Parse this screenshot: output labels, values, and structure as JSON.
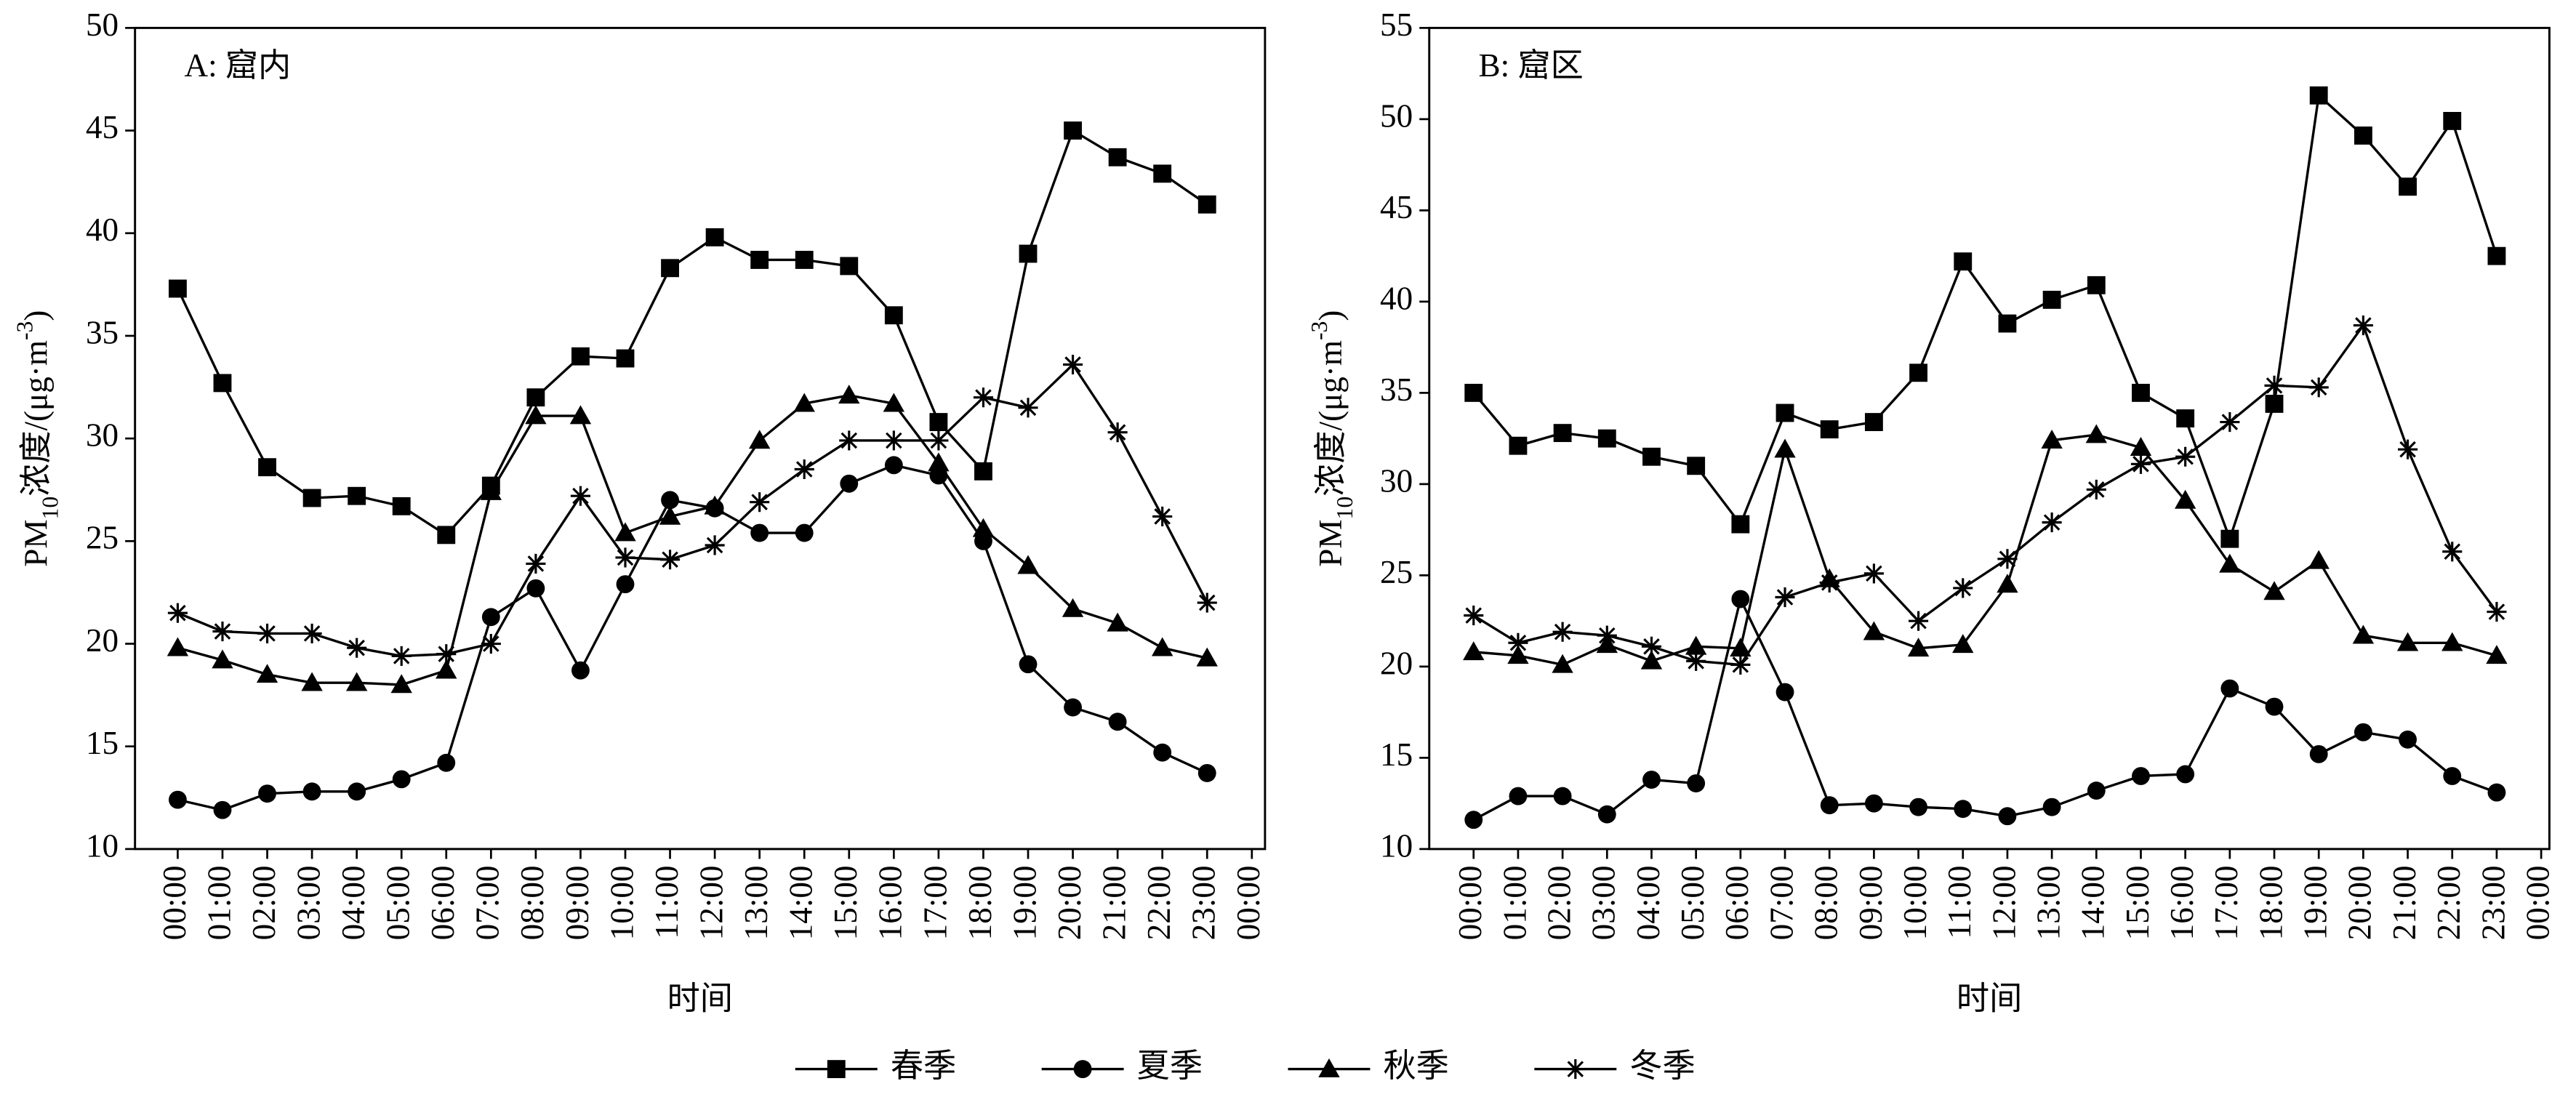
{
  "chart_data": [
    {
      "type": "line",
      "title": "A: 窟内",
      "ylabel_parts": [
        "PM",
        "10",
        "浓度/(μg·m",
        "-3",
        ")"
      ],
      "xlabel": "时间",
      "categories": [
        "00:00",
        "01:00",
        "02:00",
        "03:00",
        "04:00",
        "05:00",
        "06:00",
        "07:00",
        "08:00",
        "09:00",
        "10:00",
        "11:00",
        "12:00",
        "13:00",
        "14:00",
        "15:00",
        "16:00",
        "17:00",
        "18:00",
        "19:00",
        "20:00",
        "21:00",
        "22:00",
        "23:00",
        "00:00"
      ],
      "ylim": [
        10,
        50
      ],
      "yticks": [
        10,
        15,
        20,
        25,
        30,
        35,
        40,
        45,
        50
      ],
      "series": [
        {
          "name": "春季",
          "color": "#000000",
          "marker": "square",
          "values": [
            37.3,
            32.7,
            28.6,
            27.1,
            27.2,
            26.7,
            25.3,
            27.7,
            32.0,
            34.0,
            33.9,
            38.3,
            39.8,
            38.7,
            38.7,
            38.4,
            36.0,
            30.8,
            28.4,
            39.0,
            45.0,
            43.7,
            42.9,
            41.4,
            null
          ]
        },
        {
          "name": "夏季",
          "color": "#000000",
          "marker": "circle",
          "values": [
            12.4,
            11.9,
            12.7,
            12.8,
            12.8,
            13.4,
            14.2,
            21.3,
            22.7,
            18.7,
            22.9,
            27.0,
            26.6,
            25.4,
            25.4,
            27.8,
            28.7,
            28.2,
            25.0,
            19.0,
            16.9,
            16.2,
            14.7,
            13.7,
            null
          ]
        },
        {
          "name": "秋季",
          "color": "#000000",
          "marker": "triangle",
          "values": [
            19.8,
            19.2,
            18.5,
            18.1,
            18.1,
            18.0,
            18.7,
            27.4,
            31.1,
            31.1,
            25.4,
            26.2,
            26.7,
            29.9,
            31.7,
            32.1,
            31.7,
            28.8,
            25.6,
            23.8,
            21.7,
            21.0,
            19.8,
            19.3,
            null
          ]
        },
        {
          "name": "冬季",
          "color": "#000000",
          "marker": "asterisk",
          "values": [
            21.5,
            20.6,
            20.5,
            20.5,
            19.8,
            19.4,
            19.5,
            20.0,
            23.9,
            27.2,
            24.2,
            24.1,
            24.8,
            26.9,
            28.5,
            29.9,
            29.9,
            29.9,
            32.0,
            31.5,
            33.6,
            30.3,
            26.2,
            22.0,
            null
          ]
        }
      ]
    },
    {
      "type": "line",
      "title": "B: 窟区",
      "ylabel_parts": [
        "PM",
        "10",
        "浓度/(μg·m",
        "-3",
        ")"
      ],
      "xlabel": "时间",
      "categories": [
        "00:00",
        "01:00",
        "02:00",
        "03:00",
        "04:00",
        "05:00",
        "06:00",
        "07:00",
        "08:00",
        "09:00",
        "10:00",
        "11:00",
        "12:00",
        "13:00",
        "14:00",
        "15:00",
        "16:00",
        "17:00",
        "18:00",
        "19:00",
        "20:00",
        "21:00",
        "22:00",
        "23:00",
        "00:00"
      ],
      "ylim": [
        10,
        55
      ],
      "yticks": [
        10,
        15,
        20,
        25,
        30,
        35,
        40,
        45,
        50,
        55
      ],
      "series": [
        {
          "color": "#000000",
          "marker": "square",
          "values": [
            35.0,
            32.1,
            32.8,
            32.5,
            31.5,
            31.0,
            27.8,
            33.9,
            33.0,
            33.4,
            36.1,
            42.2,
            38.8,
            40.1,
            40.9,
            35.0,
            33.6,
            27.0,
            34.4,
            51.3,
            49.1,
            46.3,
            49.9,
            42.5,
            null
          ]
        },
        {
          "color": "#000000",
          "marker": "circle",
          "values": [
            11.6,
            12.9,
            12.9,
            11.9,
            13.8,
            13.6,
            23.7,
            18.6,
            12.4,
            12.5,
            12.3,
            12.2,
            11.8,
            12.3,
            13.2,
            14.0,
            14.1,
            18.8,
            17.8,
            15.2,
            16.4,
            16.0,
            14.0,
            13.1,
            null
          ]
        },
        {
          "color": "#000000",
          "marker": "triangle",
          "values": [
            20.8,
            20.6,
            20.1,
            21.2,
            20.3,
            21.1,
            21.0,
            31.9,
            24.8,
            21.9,
            21.0,
            21.2,
            24.5,
            32.4,
            32.7,
            32.0,
            29.1,
            25.6,
            24.1,
            25.8,
            21.7,
            21.3,
            21.3,
            20.6,
            null
          ]
        },
        {
          "color": "#000000",
          "marker": "asterisk",
          "values": [
            22.8,
            21.3,
            21.9,
            21.7,
            21.1,
            20.3,
            20.1,
            23.8,
            24.6,
            25.1,
            22.5,
            24.3,
            25.9,
            27.9,
            29.7,
            31.1,
            31.5,
            33.4,
            35.4,
            35.3,
            38.7,
            31.9,
            26.3,
            23.0,
            null
          ]
        }
      ]
    }
  ]
}
